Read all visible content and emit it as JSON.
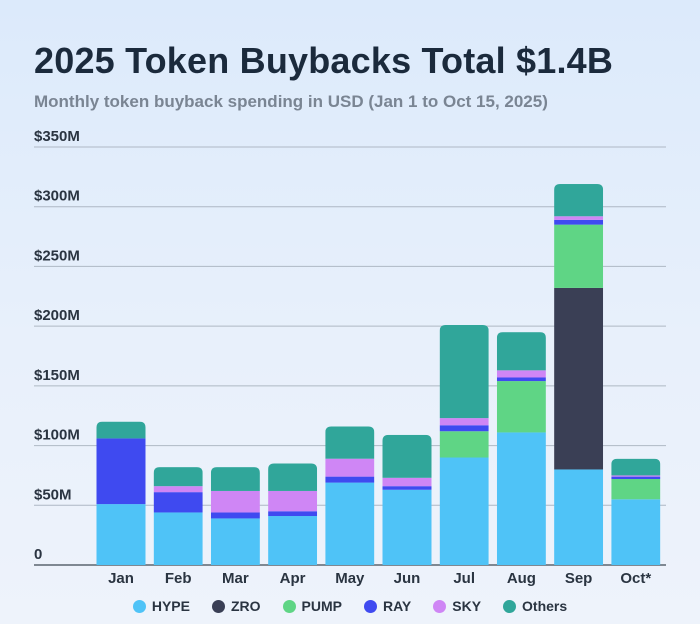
{
  "chart_data": {
    "type": "bar",
    "stacked": true,
    "title": "2025 Token Buybacks Total $1.4B",
    "subtitle": "Monthly token buyback spending in USD (Jan 1 to Oct 15, 2025)",
    "xlabel": "",
    "ylabel": "",
    "ylim": [
      0,
      350
    ],
    "grid": true,
    "legend_position": "bottom",
    "y_ticks": [
      {
        "value": 0,
        "label": "0"
      },
      {
        "value": 50,
        "label": "$50M"
      },
      {
        "value": 100,
        "label": "$100M"
      },
      {
        "value": 150,
        "label": "$150M"
      },
      {
        "value": 200,
        "label": "$200M"
      },
      {
        "value": 250,
        "label": "$250M"
      },
      {
        "value": 300,
        "label": "$300M"
      },
      {
        "value": 350,
        "label": "$350M"
      }
    ],
    "categories": [
      "Jan",
      "Feb",
      "Mar",
      "Apr",
      "May",
      "Jun",
      "Jul",
      "Aug",
      "Sep",
      "Oct*"
    ],
    "series": [
      {
        "name": "HYPE",
        "color": "#4fc3f7",
        "values": [
          51,
          44,
          39,
          41,
          69,
          63,
          90,
          111,
          80,
          55
        ]
      },
      {
        "name": "ZRO",
        "color": "#3a3f55",
        "values": [
          0,
          0,
          0,
          0,
          0,
          0,
          0,
          0,
          152,
          0
        ]
      },
      {
        "name": "PUMP",
        "color": "#5fd585",
        "values": [
          0,
          0,
          0,
          0,
          0,
          0,
          22,
          43,
          53,
          17
        ]
      },
      {
        "name": "RAY",
        "color": "#3f4af0",
        "values": [
          55,
          17,
          5,
          4,
          5,
          3,
          5,
          3,
          4,
          2
        ]
      },
      {
        "name": "SKY",
        "color": "#cf86f5",
        "values": [
          0,
          5,
          18,
          17,
          15,
          7,
          6,
          6,
          3,
          1
        ]
      },
      {
        "name": "Others",
        "color": "#30a69a",
        "values": [
          14,
          16,
          20,
          23,
          27,
          36,
          78,
          32,
          27,
          14
        ]
      }
    ]
  }
}
